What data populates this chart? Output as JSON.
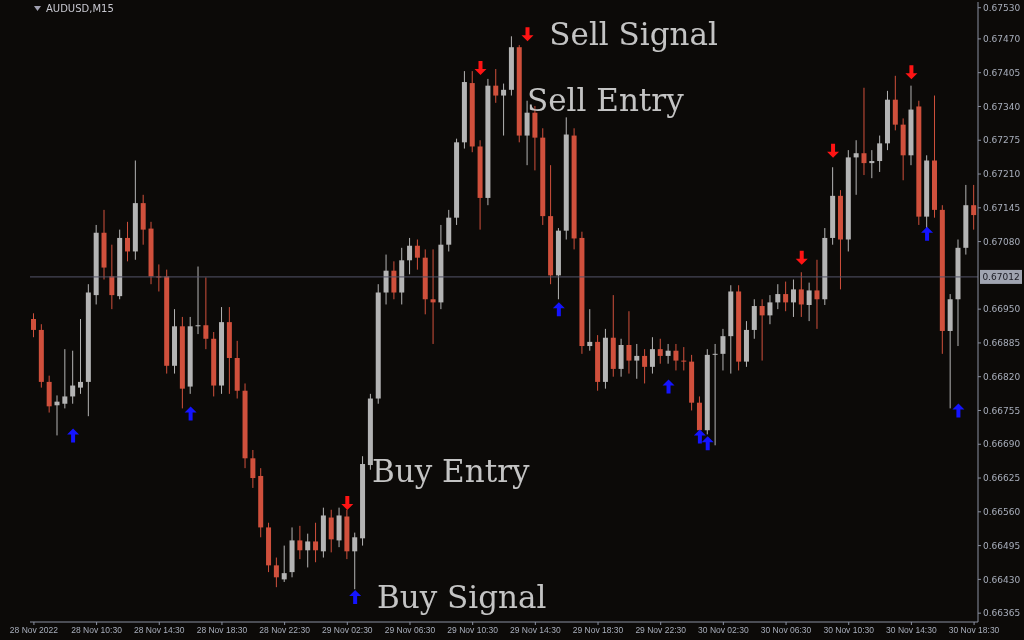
{
  "chart_data": {
    "type": "candlestick",
    "title": "AUDUSD,M15",
    "colors": [
      "#d0503c",
      "#d0503c",
      "#d0503c",
      "#b4b4b4",
      "#b4b4b4",
      "#b4b4b4",
      "#b4b4b4",
      "#b4b4b4",
      "#b4b4b4",
      "#d0503c",
      "#d0503c",
      "#b4b4b4",
      "#d0503c",
      "#b4b4b4",
      "#d0503c",
      "#d0503c",
      "#d0503c",
      "#d0503c",
      "#b4b4b4",
      "#d0503c",
      "#b4b4b4",
      "#b4b4b4",
      "#d0503c",
      "#d0503c",
      "#b4b4b4",
      "#d0503c",
      "#d0503c",
      "#d0503c",
      "#d0503c",
      "#d0503c",
      "#d0503c",
      "#d0503c",
      "#b4b4b4",
      "#b4b4b4",
      "#d0503c",
      "#b4b4b4",
      "#d0503c",
      "#b4b4b4",
      "#d0503c",
      "#b4b4b4",
      "#d0503c",
      "#b4b4b4",
      "#b4b4b4",
      "#b4b4b4",
      "#b4b4b4",
      "#b4b4b4",
      "#d0503c",
      "#b4b4b4",
      "#b4b4b4",
      "#d0503c",
      "#d0503c",
      "#d0503c",
      "#b4b4b4",
      "#b4b4b4",
      "#b4b4b4",
      "#b4b4b4",
      "#d0503c",
      "#d0503c",
      "#b4b4b4",
      "#d0503c",
      "#b4b4b4",
      "#b4b4b4",
      "#d0503c",
      "#b4b4b4",
      "#d0503c",
      "#d0503c",
      "#d0503c",
      "#b4b4b4",
      "#b4b4b4",
      "#d0503c",
      "#d0503c",
      "#b4b4b4",
      "#d0503c",
      "#b4b4b4",
      "#d0503c",
      "#b4b4b4",
      "#d0503c",
      "#b4b4b4",
      "#d0503c",
      "#b4b4b4",
      "#d0503c",
      "#b4b4b4",
      "#d0503c",
      "#d0503c",
      "#d0503c",
      "#d0503c",
      "#b4b4b4",
      "#b4b4b4",
      "#b4b4b4",
      "#b4b4b4",
      "#d0503c",
      "#b4b4b4",
      "#b4b4b4",
      "#d0503c",
      "#b4b4b4",
      "#b4b4b4",
      "#d0503c",
      "#b4b4b4",
      "#d0503c",
      "#b4b4b4",
      "#d0503c",
      "#b4b4b4",
      "#b4b4b4",
      "#d0503c",
      "#b4b4b4",
      "#b4b4b4",
      "#d0503c",
      "#b4b4b4",
      "#b4b4b4",
      "#b4b4b4",
      "#d0503c",
      "#d0503c",
      "#b4b4b4",
      "#d0503c",
      "#b4b4b4",
      "#d0503c",
      "#d0503c",
      "#b4b4b4",
      "#b4b4b4",
      "#b4b4b4",
      "#d0503c"
    ],
    "x": [
      "2022-11-28T06:30",
      "2022-11-28T07:00",
      "2022-11-28T07:30",
      "2022-11-28T08:00",
      "2022-11-28T08:30",
      "2022-11-28T09:00",
      "2022-11-28T09:30",
      "2022-11-28T10:00",
      "2022-11-28T10:30",
      "2022-11-28T11:00",
      "2022-11-28T11:30",
      "2022-11-28T12:00",
      "2022-11-28T12:30",
      "2022-11-28T13:00",
      "2022-11-28T13:30",
      "2022-11-28T14:00",
      "2022-11-28T14:30",
      "2022-11-28T15:00",
      "2022-11-28T15:30",
      "2022-11-28T16:00",
      "2022-11-28T16:30",
      "2022-11-28T17:00",
      "2022-11-28T17:30",
      "2022-11-28T18:00",
      "2022-11-28T18:30",
      "2022-11-28T19:00",
      "2022-11-28T19:30",
      "2022-11-28T20:00",
      "2022-11-28T20:30",
      "2022-11-28T21:00",
      "2022-11-28T21:30",
      "2022-11-28T22:00",
      "2022-11-28T22:30",
      "2022-11-28T23:00",
      "2022-11-28T23:30",
      "2022-11-29T00:00",
      "2022-11-29T00:30",
      "2022-11-29T01:00",
      "2022-11-29T01:30",
      "2022-11-29T02:00",
      "2022-11-29T02:30",
      "2022-11-29T03:00",
      "2022-11-29T03:30",
      "2022-11-29T04:00",
      "2022-11-29T04:30",
      "2022-11-29T05:00",
      "2022-11-29T05:30",
      "2022-11-29T06:00",
      "2022-11-29T06:30",
      "2022-11-29T07:00",
      "2022-11-29T07:30",
      "2022-11-29T08:00",
      "2022-11-29T08:30",
      "2022-11-29T09:00",
      "2022-11-29T09:30",
      "2022-11-29T10:00",
      "2022-11-29T10:30",
      "2022-11-29T11:00",
      "2022-11-29T11:30",
      "2022-11-29T12:00",
      "2022-11-29T12:30",
      "2022-11-29T13:00",
      "2022-11-29T13:30",
      "2022-11-29T14:00",
      "2022-11-29T14:30",
      "2022-11-29T15:00",
      "2022-11-29T15:30",
      "2022-11-29T16:00",
      "2022-11-29T16:30",
      "2022-11-29T17:00",
      "2022-11-29T17:30",
      "2022-11-29T18:00",
      "2022-11-29T18:30",
      "2022-11-29T19:00",
      "2022-11-29T19:30",
      "2022-11-29T20:00",
      "2022-11-29T20:30",
      "2022-11-29T21:00",
      "2022-11-29T21:30",
      "2022-11-29T22:00",
      "2022-11-29T22:30",
      "2022-11-29T23:00",
      "2022-11-29T23:30",
      "2022-11-30T00:00",
      "2022-11-30T00:30",
      "2022-11-30T01:00",
      "2022-11-30T01:30",
      "2022-11-30T02:00",
      "2022-11-30T02:30",
      "2022-11-30T03:00",
      "2022-11-30T03:30",
      "2022-11-30T04:00",
      "2022-11-30T04:30",
      "2022-11-30T05:00",
      "2022-11-30T05:30",
      "2022-11-30T06:00",
      "2022-11-30T06:30",
      "2022-11-30T07:00",
      "2022-11-30T07:30",
      "2022-11-30T08:00",
      "2022-11-30T08:30",
      "2022-11-30T09:00",
      "2022-11-30T09:30",
      "2022-11-30T10:00",
      "2022-11-30T10:30",
      "2022-11-30T11:00",
      "2022-11-30T11:30",
      "2022-11-30T12:00",
      "2022-11-30T12:30",
      "2022-11-30T13:00",
      "2022-11-30T13:30",
      "2022-11-30T14:00",
      "2022-11-30T14:30",
      "2022-11-30T15:00",
      "2022-11-30T15:30",
      "2022-11-30T16:00",
      "2022-11-30T16:30",
      "2022-11-30T17:00",
      "2022-11-30T17:30",
      "2022-11-30T18:00",
      "2022-11-30T18:30"
    ],
    "ohlc": [
      [
        0.66931,
        0.66942,
        0.66896,
        0.6691
      ],
      [
        0.6691,
        0.66921,
        0.66799,
        0.6681
      ],
      [
        0.6681,
        0.66822,
        0.66751,
        0.66763
      ],
      [
        0.66765,
        0.66784,
        0.66707,
        0.66772
      ],
      [
        0.66768,
        0.66873,
        0.66759,
        0.66782
      ],
      [
        0.66782,
        0.6687,
        0.66768,
        0.66803
      ],
      [
        0.66799,
        0.66931,
        0.66787,
        0.6681
      ],
      [
        0.6681,
        0.66998,
        0.66744,
        0.66982
      ],
      [
        0.66977,
        0.67112,
        0.66959,
        0.67097
      ],
      [
        0.67097,
        0.67141,
        0.67007,
        0.6703
      ],
      [
        0.67013,
        0.67074,
        0.6695,
        0.66977
      ],
      [
        0.66975,
        0.67103,
        0.66969,
        0.67087
      ],
      [
        0.67087,
        0.67118,
        0.67042,
        0.67061
      ],
      [
        0.67061,
        0.67236,
        0.67045,
        0.67154
      ],
      [
        0.67154,
        0.6717,
        0.67074,
        0.67103
      ],
      [
        0.67105,
        0.67118,
        0.66998,
        0.67013
      ],
      [
        0.67013,
        0.67036,
        0.66984,
        0.67011
      ],
      [
        0.67013,
        0.67026,
        0.66826,
        0.66841
      ],
      [
        0.66841,
        0.6695,
        0.66826,
        0.66917
      ],
      [
        0.66917,
        0.66935,
        0.66759,
        0.66797
      ],
      [
        0.66801,
        0.66935,
        0.66787,
        0.66917
      ],
      [
        0.66917,
        0.67032,
        0.66902,
        0.66919
      ],
      [
        0.66919,
        0.67011,
        0.66873,
        0.66893
      ],
      [
        0.66893,
        0.66906,
        0.66782,
        0.66803
      ],
      [
        0.66803,
        0.66954,
        0.66787,
        0.66925
      ],
      [
        0.66925,
        0.66954,
        0.66787,
        0.66856
      ],
      [
        0.66856,
        0.66889,
        0.66778,
        0.66793
      ],
      [
        0.66793,
        0.66807,
        0.66644,
        0.66663
      ],
      [
        0.66663,
        0.66679,
        0.66606,
        0.66625
      ],
      [
        0.66629,
        0.66644,
        0.66511,
        0.6653
      ],
      [
        0.6653,
        0.66539,
        0.66444,
        0.66457
      ],
      [
        0.66457,
        0.66472,
        0.66415,
        0.66434
      ],
      [
        0.6643,
        0.66495,
        0.66425,
        0.66442
      ],
      [
        0.66444,
        0.6653,
        0.66434,
        0.66505
      ],
      [
        0.66505,
        0.66533,
        0.66469,
        0.66486
      ],
      [
        0.66486,
        0.66518,
        0.66453,
        0.66503
      ],
      [
        0.66503,
        0.66539,
        0.66463,
        0.66486
      ],
      [
        0.66484,
        0.66568,
        0.66472,
        0.66553
      ],
      [
        0.66549,
        0.66564,
        0.66482,
        0.66507
      ],
      [
        0.66505,
        0.66568,
        0.66492,
        0.66553
      ],
      [
        0.66551,
        0.66564,
        0.66469,
        0.66484
      ],
      [
        0.66484,
        0.6652,
        0.66411,
        0.66511
      ],
      [
        0.66509,
        0.66667,
        0.66495,
        0.66652
      ],
      [
        0.6665,
        0.66787,
        0.66641,
        0.66778
      ],
      [
        0.66778,
        0.66998,
        0.66768,
        0.66982
      ],
      [
        0.66982,
        0.67055,
        0.66959,
        0.67024
      ],
      [
        0.67024,
        0.67042,
        0.66969,
        0.66982
      ],
      [
        0.66982,
        0.67068,
        0.66959,
        0.67044
      ],
      [
        0.67044,
        0.67087,
        0.67017,
        0.67072
      ],
      [
        0.67072,
        0.67084,
        0.67026,
        0.67049
      ],
      [
        0.67049,
        0.67065,
        0.6694,
        0.66969
      ],
      [
        0.66969,
        0.67065,
        0.66883,
        0.66963
      ],
      [
        0.66963,
        0.67112,
        0.6695,
        0.67074
      ],
      [
        0.67074,
        0.67141,
        0.67061,
        0.67126
      ],
      [
        0.67126,
        0.67278,
        0.67112,
        0.67271
      ],
      [
        0.67271,
        0.67408,
        0.67259,
        0.67387
      ],
      [
        0.67385,
        0.67408,
        0.67252,
        0.67263
      ],
      [
        0.67263,
        0.67275,
        0.67103,
        0.67164
      ],
      [
        0.67164,
        0.67393,
        0.6715,
        0.6738
      ],
      [
        0.6738,
        0.67412,
        0.67347,
        0.67361
      ],
      [
        0.67361,
        0.67384,
        0.67284,
        0.67372
      ],
      [
        0.67372,
        0.67475,
        0.67361,
        0.67454
      ],
      [
        0.67454,
        0.67458,
        0.67271,
        0.67284
      ],
      [
        0.67284,
        0.67351,
        0.67227,
        0.67328
      ],
      [
        0.67328,
        0.67341,
        0.67217,
        0.6728
      ],
      [
        0.6728,
        0.67298,
        0.67112,
        0.67129
      ],
      [
        0.67129,
        0.67227,
        0.66998,
        0.67015
      ],
      [
        0.67015,
        0.67106,
        0.66969,
        0.67101
      ],
      [
        0.67101,
        0.67319,
        0.67084,
        0.67286
      ],
      [
        0.67284,
        0.67298,
        0.67065,
        0.67086
      ],
      [
        0.67087,
        0.67099,
        0.66864,
        0.66879
      ],
      [
        0.66879,
        0.6695,
        0.6687,
        0.66887
      ],
      [
        0.66887,
        0.669,
        0.66793,
        0.6681
      ],
      [
        0.6681,
        0.66912,
        0.66797,
        0.66895
      ],
      [
        0.66895,
        0.66977,
        0.6682,
        0.66835
      ],
      [
        0.66835,
        0.66893,
        0.6682,
        0.66881
      ],
      [
        0.66881,
        0.66946,
        0.66826,
        0.66851
      ],
      [
        0.66851,
        0.66883,
        0.66816,
        0.6686
      ],
      [
        0.6686,
        0.66873,
        0.66807,
        0.66839
      ],
      [
        0.66839,
        0.66896,
        0.66826,
        0.66873
      ],
      [
        0.66873,
        0.66893,
        0.66845,
        0.6686
      ],
      [
        0.6686,
        0.66883,
        0.66845,
        0.6687
      ],
      [
        0.6687,
        0.66883,
        0.66832,
        0.66851
      ],
      [
        0.66851,
        0.66877,
        0.66832,
        0.66849
      ],
      [
        0.66849,
        0.66862,
        0.66755,
        0.6677
      ],
      [
        0.6677,
        0.66782,
        0.66713,
        0.66717
      ],
      [
        0.66717,
        0.66873,
        0.66709,
        0.66862
      ],
      [
        0.66864,
        0.66883,
        0.66688,
        0.66864
      ],
      [
        0.66864,
        0.66912,
        0.66832,
        0.66898
      ],
      [
        0.66898,
        0.66996,
        0.66826,
        0.66984
      ],
      [
        0.66984,
        0.66996,
        0.66832,
        0.66849
      ],
      [
        0.66849,
        0.66927,
        0.66839,
        0.6691
      ],
      [
        0.6691,
        0.66969,
        0.66893,
        0.66956
      ],
      [
        0.66956,
        0.66969,
        0.66851,
        0.66938
      ],
      [
        0.66938,
        0.66977,
        0.66921,
        0.66963
      ],
      [
        0.66963,
        0.66998,
        0.6695,
        0.66979
      ],
      [
        0.66979,
        0.67003,
        0.66946,
        0.66963
      ],
      [
        0.66963,
        0.67007,
        0.66935,
        0.66988
      ],
      [
        0.66988,
        0.67021,
        0.66935,
        0.66959
      ],
      [
        0.66958,
        0.67001,
        0.66927,
        0.66986
      ],
      [
        0.66986,
        0.67045,
        0.66912,
        0.66969
      ],
      [
        0.66969,
        0.67106,
        0.66958,
        0.67087
      ],
      [
        0.67087,
        0.67223,
        0.67074,
        0.67168
      ],
      [
        0.67168,
        0.67179,
        0.66988,
        0.67084
      ],
      [
        0.67084,
        0.67256,
        0.67061,
        0.67242
      ],
      [
        0.67242,
        0.67275,
        0.6717,
        0.6725
      ],
      [
        0.6725,
        0.67376,
        0.67208,
        0.67231
      ],
      [
        0.67231,
        0.67256,
        0.67202,
        0.67235
      ],
      [
        0.67235,
        0.67284,
        0.67214,
        0.67269
      ],
      [
        0.67269,
        0.6737,
        0.67256,
        0.67353
      ],
      [
        0.67353,
        0.67399,
        0.67294,
        0.67305
      ],
      [
        0.67305,
        0.67317,
        0.67198,
        0.67246
      ],
      [
        0.67246,
        0.6738,
        0.67227,
        0.67334
      ],
      [
        0.6734,
        0.67351,
        0.67112,
        0.67128
      ],
      [
        0.67128,
        0.67246,
        0.67103,
        0.67236
      ],
      [
        0.67236,
        0.67361,
        0.67126,
        0.67141
      ],
      [
        0.67141,
        0.6715,
        0.66864,
        0.66908
      ],
      [
        0.66908,
        0.66979,
        0.66759,
        0.66969
      ],
      [
        0.66969,
        0.67084,
        0.66879,
        0.67068
      ],
      [
        0.67068,
        0.67189,
        0.67055,
        0.6715
      ],
      [
        0.6715,
        0.67189,
        0.67103,
        0.67131
      ]
    ],
    "series": [
      {
        "type": "scatter",
        "color": "#1414ff",
        "marker": "triangle",
        "x": [
          "2022-11-28T09:00",
          "2022-11-28T16:30",
          "2022-11-29T03:00",
          "2022-11-29T16:00",
          "2022-11-29T23:00",
          "2022-11-30T01:00",
          "2022-11-30T01:30",
          "2022-11-30T15:30",
          "2022-11-30T17:30"
        ],
        "values": [
          0.66707,
          0.66749,
          0.66396,
          0.6695,
          0.66801,
          0.66705,
          0.66692,
          0.67095,
          0.66755
        ]
      },
      {
        "type": "scatter",
        "color": "#ff1414",
        "marker": "triangle",
        "x": [
          "2022-11-29T02:30",
          "2022-11-29T11:00",
          "2022-11-29T14:00",
          "2022-11-30T07:30",
          "2022-11-30T09:30",
          "2022-11-30T14:30"
        ],
        "values": [
          0.66577,
          0.67414,
          0.67479,
          0.67049,
          0.67255,
          0.67406
        ]
      }
    ],
    "annotations": [
      {
        "text": "Sell Signal",
        "x": "2022-11-29T14:30",
        "y": 0.67479
      },
      "Sell Entry",
      "Buy Entry",
      {
        "text": "Buy Signal",
        "x": "2022-11-29T03:30",
        "y": 0.66396
      }
    ],
    "ref_lines": [
      {
        "axis": "y",
        "value": 0.67012,
        "label": "0.67012",
        "color": "#55556a"
      }
    ],
    "xlim": [
      "2022-11-28T06:15",
      "2022-11-30T18:45"
    ],
    "xticks": [
      {
        "value": "2022-11-28T06:30",
        "label": "28 Nov 2022"
      },
      {
        "value": "2022-11-28T10:30",
        "label": "28 Nov 10:30"
      },
      {
        "value": "2022-11-28T14:30",
        "label": "28 Nov 14:30"
      },
      {
        "value": "2022-11-28T18:30",
        "label": "28 Nov 18:30"
      },
      {
        "value": "2022-11-28T22:30",
        "label": "28 Nov 22:30"
      },
      {
        "value": "2022-11-29T02:30",
        "label": "29 Nov 02:30"
      },
      {
        "value": "2022-11-29T06:30",
        "label": "29 Nov 06:30"
      },
      {
        "value": "2022-11-29T10:30",
        "label": "29 Nov 10:30"
      },
      {
        "value": "2022-11-29T14:30",
        "label": "29 Nov 14:30"
      },
      {
        "value": "2022-11-29T18:30",
        "label": "29 Nov 18:30"
      },
      {
        "value": "2022-11-29T22:30",
        "label": "29 Nov 22:30"
      },
      {
        "value": "2022-11-30T02:30",
        "label": "30 Nov 02:30"
      },
      {
        "value": "2022-11-30T06:30",
        "label": "30 Nov 06:30"
      },
      {
        "value": "2022-11-30T10:30",
        "label": "30 Nov 10:30"
      },
      {
        "value": "2022-11-30T14:30",
        "label": "30 Nov 14:30"
      },
      {
        "value": "2022-11-30T18:30",
        "label": "30 Nov 18:30"
      }
    ],
    "ylim": [
      0.66348,
      0.67541
    ],
    "yticks": [
      {
        "value": 0.6753,
        "label": "0.67530"
      },
      {
        "value": 0.6747,
        "label": "0.67470"
      },
      0.67405,
      {
        "value": 0.6734,
        "label": "0.67340"
      },
      0.67275,
      {
        "value": 0.6721,
        "label": "0.67210"
      },
      0.67145,
      {
        "value": 0.6708,
        "label": "0.67080"
      },
      {
        "value": 0.6695,
        "label": "0.66950"
      },
      0.66885,
      {
        "value": 0.6682,
        "label": "0.66820"
      },
      0.66755,
      {
        "value": 0.6669,
        "label": "0.66690"
      },
      0.66625,
      {
        "value": 0.6656,
        "label": "0.66560"
      },
      0.66495,
      {
        "value": 0.6643,
        "label": "0.66430"
      },
      0.66365
    ]
  }
}
